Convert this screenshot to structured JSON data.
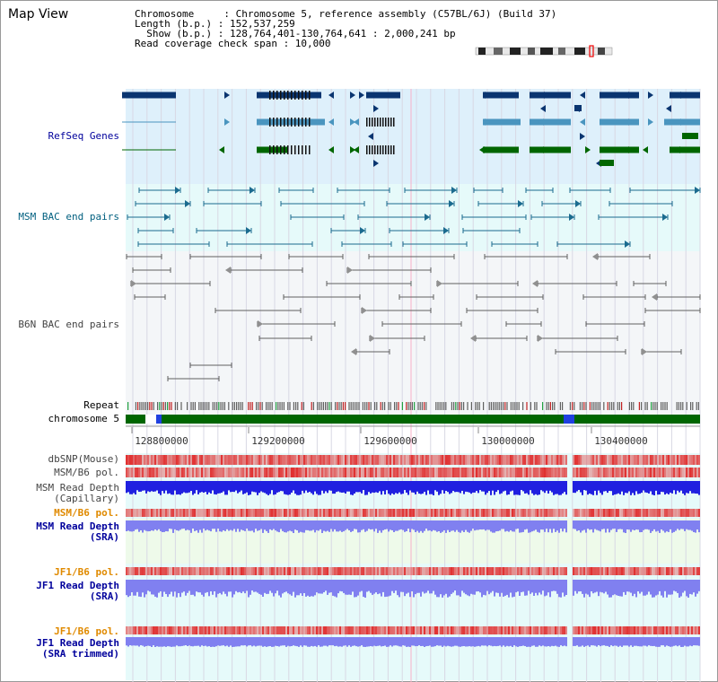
{
  "title": "Map View",
  "info": {
    "chromosome_line": "Chromosome     : Chromosome 5, reference assembly (C57BL/6J) (Build 37)",
    "length_line": "Length (b.p.) : 152,537,259",
    "show_line": "  Show (b.p.) : 128,764,401-130,764,641 : 2,000,241 bp",
    "span_line": "Read coverage check span : 10,000"
  },
  "tracks": {
    "refseq": "RefSeq Genes",
    "msm_bac": "MSM BAC end pairs",
    "b6n_bac": "B6N BAC end pairs",
    "repeat": "Repeat",
    "chromosome": "chromosome 5",
    "dbsnp": "dbSNP(Mouse)",
    "msm_pol": "MSM/B6 pol.",
    "msm_depth_cap_1": "MSM Read Depth",
    "msm_depth_cap_2": "(Capillary)",
    "msm_pol2": "MSM/B6 pol.",
    "msm_depth_sra_1": "MSM Read Depth",
    "msm_depth_sra_2": "(SRA)",
    "jf1_pol": "JF1/B6 pol.",
    "jf1_depth_sra_1": "JF1 Read Depth",
    "jf1_depth_sra_2": "(SRA)",
    "jf1_pol2": "JF1/B6 pol.",
    "jf1_depth_trim_1": "JF1 Read Depth",
    "jf1_depth_trim_2": "(SRA trimmed)"
  },
  "axis": {
    "ticks": [
      "128800000",
      "129200000",
      "129600000",
      "130000000",
      "130400000"
    ]
  },
  "colors": {
    "refseq_dark": "#0a3570",
    "refseq_light": "#4a95bf",
    "refseq_green": "#006600",
    "bac_msm": "#1b6b8f",
    "bac_b6n": "#606060",
    "chrom_green": "#006600",
    "pol_red": "#e03030",
    "depth_blue": "#2020e0",
    "depth_sra": "#8080f0",
    "label_blue": "#00009c",
    "label_teal": "#005f7f",
    "label_orange": "#e08a00"
  }
}
